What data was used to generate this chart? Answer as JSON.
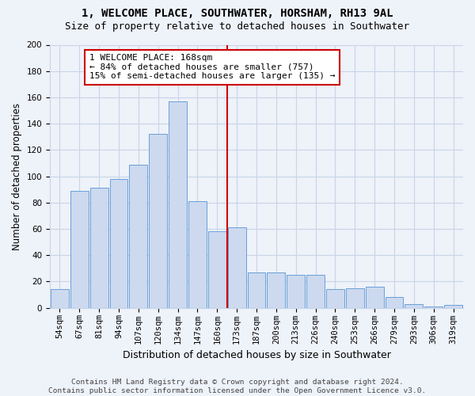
{
  "title": "1, WELCOME PLACE, SOUTHWATER, HORSHAM, RH13 9AL",
  "subtitle": "Size of property relative to detached houses in Southwater",
  "xlabel": "Distribution of detached houses by size in Southwater",
  "ylabel": "Number of detached properties",
  "footer_line1": "Contains HM Land Registry data © Crown copyright and database right 2024.",
  "footer_line2": "Contains public sector information licensed under the Open Government Licence v3.0.",
  "bar_labels": [
    "54sqm",
    "67sqm",
    "81sqm",
    "94sqm",
    "107sqm",
    "120sqm",
    "134sqm",
    "147sqm",
    "160sqm",
    "173sqm",
    "187sqm",
    "200sqm",
    "213sqm",
    "226sqm",
    "240sqm",
    "253sqm",
    "266sqm",
    "279sqm",
    "293sqm",
    "306sqm",
    "319sqm"
  ],
  "bar_values": [
    14,
    89,
    91,
    98,
    109,
    132,
    157,
    81,
    58,
    61,
    27,
    27,
    25,
    25,
    14,
    15,
    16,
    8,
    3,
    1,
    2
  ],
  "bar_color": "#ccd9ef",
  "bar_edge_color": "#6a9fd8",
  "grid_color": "#c8d4e8",
  "ref_line_color": "#cc0000",
  "annotation_text": "1 WELCOME PLACE: 168sqm\n← 84% of detached houses are smaller (757)\n15% of semi-detached houses are larger (135) →",
  "annotation_box_color": "#cc0000",
  "ylim": [
    0,
    200
  ],
  "yticks": [
    0,
    20,
    40,
    60,
    80,
    100,
    120,
    140,
    160,
    180,
    200
  ],
  "title_fontsize": 10,
  "subtitle_fontsize": 9,
  "xlabel_fontsize": 9,
  "ylabel_fontsize": 8.5,
  "tick_fontsize": 7.5,
  "annotation_fontsize": 8,
  "footer_fontsize": 6.8,
  "background_color": "#eef2f9"
}
